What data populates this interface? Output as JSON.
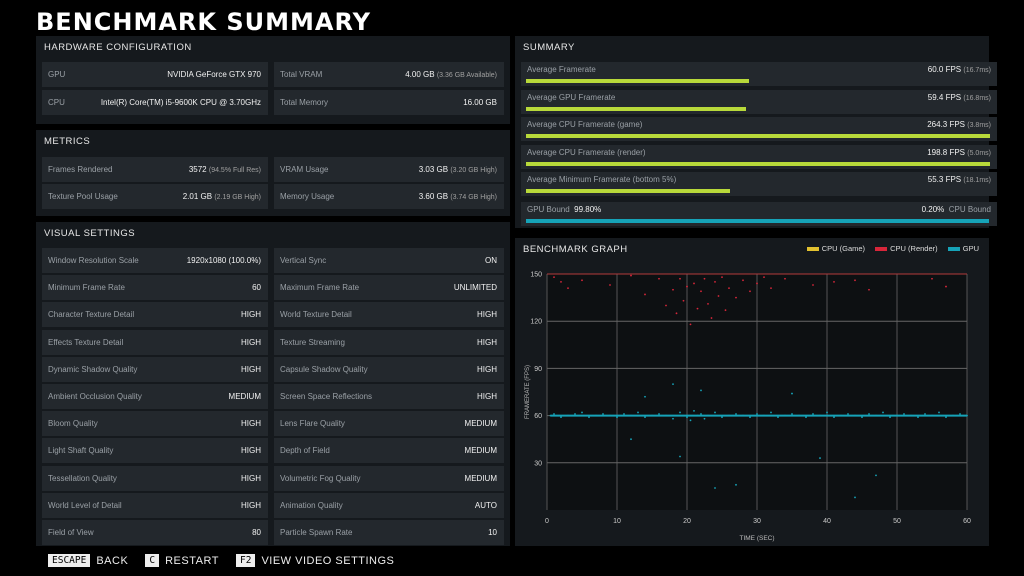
{
  "title": "BENCHMARK SUMMARY",
  "hardware": {
    "heading": "HARDWARE CONFIGURATION",
    "rows": [
      {
        "label": "GPU",
        "value": "NVIDIA GeForce GTX 970",
        "note": ""
      },
      {
        "label": "Total VRAM",
        "value": "4.00 GB",
        "note": "(3.36 GB Available)"
      },
      {
        "label": "CPU",
        "value": "Intel(R) Core(TM) i5-9600K CPU @ 3.70GHz",
        "note": ""
      },
      {
        "label": "Total Memory",
        "value": "16.00 GB",
        "note": ""
      }
    ]
  },
  "metrics": {
    "heading": "METRICS",
    "rows": [
      {
        "label": "Frames Rendered",
        "value": "3572",
        "note": "(94.5% Full Res)"
      },
      {
        "label": "VRAM Usage",
        "value": "3.03 GB",
        "note": "(3.20 GB High)"
      },
      {
        "label": "Texture Pool Usage",
        "value": "2.01 GB",
        "note": "(2.19 GB High)"
      },
      {
        "label": "Memory Usage",
        "value": "3.60 GB",
        "note": "(3.74 GB High)"
      }
    ]
  },
  "visual": {
    "heading": "VISUAL SETTINGS",
    "rows": [
      {
        "label": "Window Resolution Scale",
        "value": "1920x1080 (100.0%)"
      },
      {
        "label": "Vertical Sync",
        "value": "ON"
      },
      {
        "label": "Minimum Frame Rate",
        "value": "60"
      },
      {
        "label": "Maximum Frame Rate",
        "value": "UNLIMITED"
      },
      {
        "label": "Character Texture Detail",
        "value": "HIGH"
      },
      {
        "label": "World Texture Detail",
        "value": "HIGH"
      },
      {
        "label": "Effects Texture Detail",
        "value": "HIGH"
      },
      {
        "label": "Texture Streaming",
        "value": "HIGH"
      },
      {
        "label": "Dynamic Shadow Quality",
        "value": "HIGH"
      },
      {
        "label": "Capsule Shadow Quality",
        "value": "HIGH"
      },
      {
        "label": "Ambient Occlusion Quality",
        "value": "MEDIUM"
      },
      {
        "label": "Screen Space Reflections",
        "value": "HIGH"
      },
      {
        "label": "Bloom Quality",
        "value": "HIGH"
      },
      {
        "label": "Lens Flare Quality",
        "value": "MEDIUM"
      },
      {
        "label": "Light Shaft Quality",
        "value": "HIGH"
      },
      {
        "label": "Depth of Field",
        "value": "MEDIUM"
      },
      {
        "label": "Tessellation Quality",
        "value": "HIGH"
      },
      {
        "label": "Volumetric Fog Quality",
        "value": "MEDIUM"
      },
      {
        "label": "World Level of Detail",
        "value": "HIGH"
      },
      {
        "label": "Animation Quality",
        "value": "AUTO"
      },
      {
        "label": "Field of View",
        "value": "80"
      },
      {
        "label": "Particle Spawn Rate",
        "value": "10"
      }
    ]
  },
  "summary": {
    "heading": "SUMMARY",
    "bar_color": "#b8d93a",
    "rows": [
      {
        "label": "Average Framerate",
        "value": "60.0 FPS",
        "note": "(16.7ms)",
        "fill": 0.48
      },
      {
        "label": "Average GPU Framerate",
        "value": "59.4 FPS",
        "note": "(16.8ms)",
        "fill": 0.475
      },
      {
        "label": "Average CPU Framerate (game)",
        "value": "264.3 FPS",
        "note": "(3.8ms)",
        "fill": 1.0
      },
      {
        "label": "Average CPU Framerate (render)",
        "value": "198.8 FPS",
        "note": "(5.0ms)",
        "fill": 1.0
      },
      {
        "label": "Average Minimum Framerate (bottom 5%)",
        "value": "55.3 FPS",
        "note": "(18.1ms)",
        "fill": 0.44
      }
    ],
    "bound": {
      "left_label": "GPU Bound",
      "left_value": "99.80%",
      "right_value": "0.20%",
      "right_label": "CPU Bound",
      "fill": 0.998,
      "color": "#16a3b8"
    }
  },
  "graph": {
    "heading": "BENCHMARK GRAPH",
    "legend": [
      {
        "label": "CPU (Game)",
        "color": "#e2c12f"
      },
      {
        "label": "CPU (Render)",
        "color": "#d8263a"
      },
      {
        "label": "GPU",
        "color": "#16a3b8"
      }
    ]
  },
  "chart_data": {
    "type": "scatter",
    "xlabel": "TIME (SEC)",
    "ylabel": "FRAMERATE (FPS)",
    "xlim": [
      0,
      60
    ],
    "ylim": [
      0,
      150
    ],
    "xticks": [
      0,
      10,
      20,
      30,
      40,
      50,
      60
    ],
    "yticks": [
      30,
      60,
      90,
      120,
      150
    ],
    "grid": true,
    "series": [
      {
        "name": "CPU (Render)",
        "color": "#d8263a",
        "points": [
          [
            1,
            148
          ],
          [
            2,
            145
          ],
          [
            3,
            141
          ],
          [
            5,
            146
          ],
          [
            9,
            143
          ],
          [
            12,
            149
          ],
          [
            14,
            137
          ],
          [
            16,
            147
          ],
          [
            17,
            130
          ],
          [
            18,
            140
          ],
          [
            18.5,
            125
          ],
          [
            19,
            147
          ],
          [
            19.5,
            133
          ],
          [
            20,
            142
          ],
          [
            20.5,
            118
          ],
          [
            21,
            144
          ],
          [
            21.5,
            128
          ],
          [
            22,
            139
          ],
          [
            22.5,
            147
          ],
          [
            23,
            131
          ],
          [
            23.5,
            122
          ],
          [
            24,
            145
          ],
          [
            24.5,
            136
          ],
          [
            25,
            148
          ],
          [
            25.5,
            127
          ],
          [
            26,
            141
          ],
          [
            27,
            135
          ],
          [
            28,
            146
          ],
          [
            29,
            139
          ],
          [
            30,
            144
          ],
          [
            31,
            148
          ],
          [
            32,
            141
          ],
          [
            34,
            147
          ],
          [
            38,
            143
          ],
          [
            41,
            145
          ],
          [
            44,
            146
          ],
          [
            46,
            140
          ],
          [
            55,
            147
          ],
          [
            57,
            142
          ]
        ]
      },
      {
        "name": "GPU",
        "color": "#16a3b8",
        "points": [
          [
            0.5,
            60
          ],
          [
            1,
            61
          ],
          [
            2,
            59
          ],
          [
            3,
            60
          ],
          [
            4,
            61
          ],
          [
            5,
            62
          ],
          [
            6,
            59
          ],
          [
            7,
            60
          ],
          [
            8,
            61
          ],
          [
            9,
            60
          ],
          [
            10,
            59
          ],
          [
            11,
            61
          ],
          [
            12,
            60
          ],
          [
            13,
            62
          ],
          [
            14,
            59
          ],
          [
            15,
            60
          ],
          [
            16,
            61
          ],
          [
            17,
            60
          ],
          [
            18,
            58
          ],
          [
            19,
            62
          ],
          [
            20,
            59
          ],
          [
            20.5,
            57
          ],
          [
            21,
            63
          ],
          [
            21.5,
            60
          ],
          [
            22,
            61
          ],
          [
            22.5,
            58
          ],
          [
            23,
            60
          ],
          [
            24,
            62
          ],
          [
            25,
            59
          ],
          [
            26,
            60
          ],
          [
            27,
            61
          ],
          [
            28,
            60
          ],
          [
            29,
            59
          ],
          [
            30,
            61
          ],
          [
            31,
            60
          ],
          [
            32,
            62
          ],
          [
            33,
            59
          ],
          [
            34,
            60
          ],
          [
            35,
            61
          ],
          [
            36,
            60
          ],
          [
            37,
            59
          ],
          [
            38,
            61
          ],
          [
            39,
            60
          ],
          [
            40,
            62
          ],
          [
            41,
            59
          ],
          [
            42,
            60
          ],
          [
            43,
            61
          ],
          [
            44,
            60
          ],
          [
            45,
            59
          ],
          [
            46,
            61
          ],
          [
            47,
            60
          ],
          [
            48,
            62
          ],
          [
            49,
            59
          ],
          [
            50,
            60
          ],
          [
            51,
            61
          ],
          [
            52,
            60
          ],
          [
            53,
            59
          ],
          [
            54,
            61
          ],
          [
            55,
            60
          ],
          [
            56,
            62
          ],
          [
            57,
            59
          ],
          [
            58,
            60
          ],
          [
            59,
            61
          ],
          [
            60,
            60
          ],
          [
            14,
            72
          ],
          [
            18,
            80
          ],
          [
            22,
            76
          ],
          [
            35,
            74
          ],
          [
            12,
            45
          ],
          [
            19,
            34
          ],
          [
            24,
            14
          ],
          [
            27,
            16
          ],
          [
            39,
            33
          ],
          [
            47,
            22
          ],
          [
            44,
            8
          ]
        ]
      }
    ]
  },
  "footer": [
    {
      "key": "ESCAPE",
      "label": "BACK"
    },
    {
      "key": "C",
      "label": "RESTART"
    },
    {
      "key": "F2",
      "label": "VIEW VIDEO SETTINGS"
    }
  ]
}
